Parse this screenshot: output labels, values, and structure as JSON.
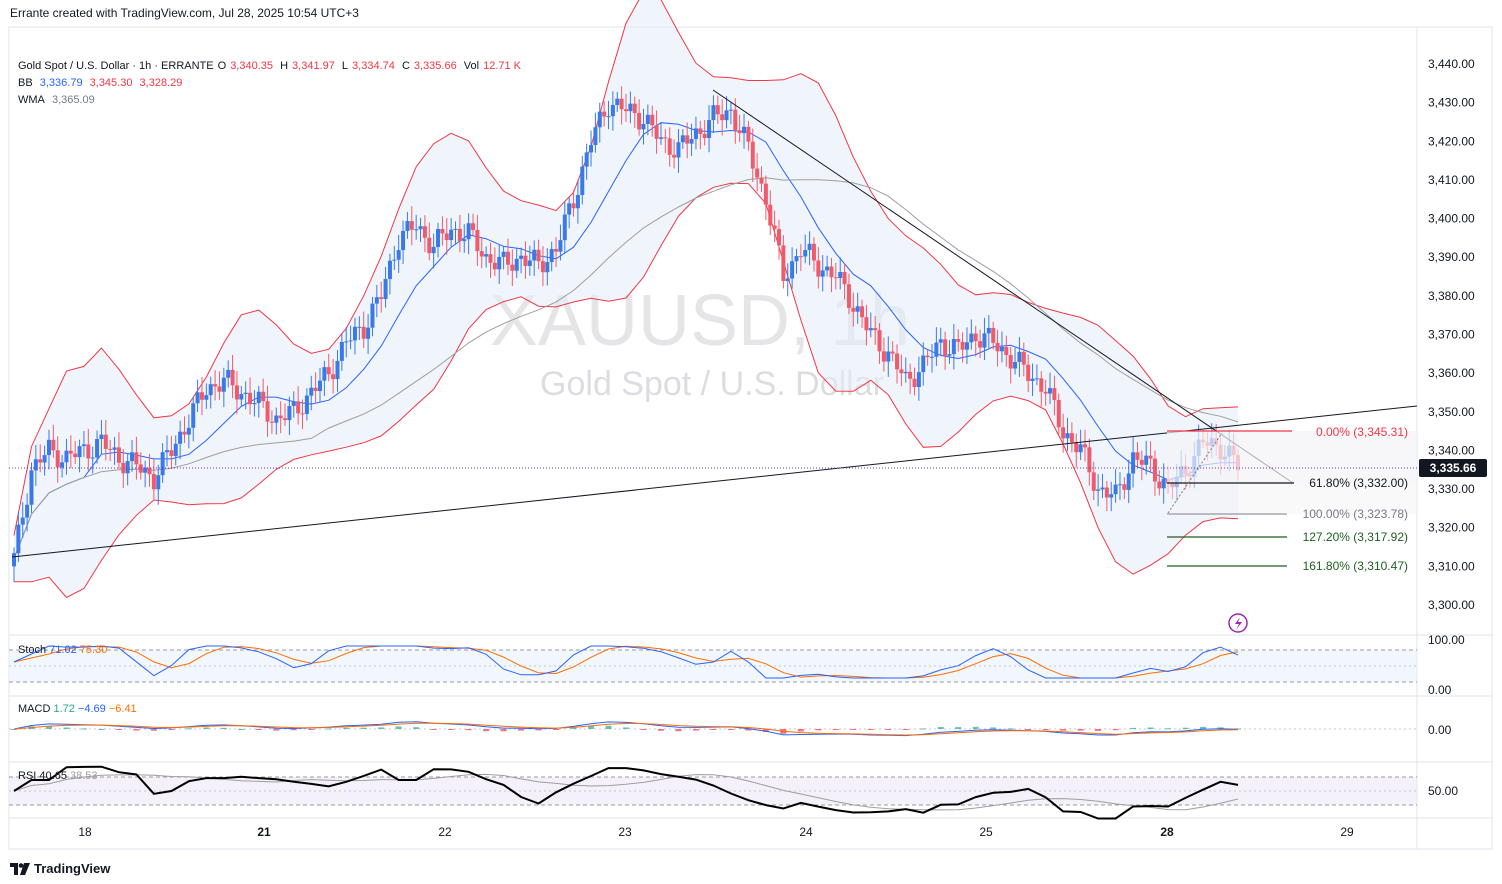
{
  "header": {
    "credit": "Errante created with TradingView.com, Jul 28, 2025 10:54 UTC+3"
  },
  "legend": {
    "symbol_line": "Gold Spot / U.S. Dollar · 1h · ERRANTE",
    "o_label": "O",
    "o_value": "3,340.35",
    "h_label": "H",
    "h_value": "3,341.97",
    "l_label": "L",
    "l_value": "3,334.74",
    "c_label": "C",
    "c_value": "3,335.66",
    "vol_label": "Vol",
    "vol_value": "12.71 K",
    "bb_label": "BB",
    "bb_basis": "3,336.79",
    "bb_upper": "3,345.30",
    "bb_lower": "3,328.29",
    "wma_label": "WMA",
    "wma_value": "3,365.09"
  },
  "watermark": {
    "symbol": "XAUUSD, 1h",
    "name": "Gold Spot / U.S. Dollar"
  },
  "price_axis": {
    "ticks": [
      "3,440.00",
      "3,430.00",
      "3,420.00",
      "3,410.00",
      "3,400.00",
      "3,390.00",
      "3,380.00",
      "3,370.00",
      "3,360.00",
      "3,350.00",
      "3,340.00",
      "3,330.00",
      "3,320.00",
      "3,310.00",
      "3,300.00"
    ],
    "last_price": "3,335.66"
  },
  "fib": [
    {
      "label": "0.00% (3,345.31)",
      "color": "#f23645"
    },
    {
      "label": "61.80% (3,332.00)",
      "color": "#131722"
    },
    {
      "label": "100.00% (3,323.78)",
      "color": "#787b86"
    },
    {
      "label": "127.20% (3,317.92)",
      "color": "#1e5e20"
    },
    {
      "label": "161.80% (3,310.47)",
      "color": "#1e5e20"
    }
  ],
  "time_axis": {
    "labels": [
      "18",
      "21",
      "22",
      "23",
      "24",
      "25",
      "28",
      "29"
    ]
  },
  "stoch": {
    "label": "Stoch",
    "k": "71.02",
    "d": "75.30",
    "ticks": [
      "100.00",
      "0.00"
    ]
  },
  "macd": {
    "label": "MACD",
    "hist": "1.72",
    "macd": "−4.69",
    "signal": "−6.41",
    "ticks": [
      "0.00"
    ]
  },
  "rsi": {
    "label": "RSI",
    "rsi": "40.65",
    "ma": "38.53",
    "ticks": [
      "50.00"
    ]
  },
  "brand": {
    "name": "TradingView"
  },
  "colors": {
    "up": "#3a79e8",
    "down": "#f05b6b",
    "bb": "#f23645",
    "basis": "#2962ff",
    "wma": "#9e9e9e",
    "stoch_k": "#2962ff",
    "stoch_d": "#ff6d00",
    "rsi": "#000000"
  },
  "chart_data": {
    "type": "line",
    "title": "",
    "price_range": [
      3295,
      3447
    ],
    "x_days": [
      "18",
      "21",
      "22",
      "23",
      "24",
      "25",
      "28",
      "29"
    ],
    "close_path": [
      3312,
      3335,
      3340,
      3338,
      3340,
      3342,
      3338,
      3336,
      3333,
      3340,
      3348,
      3356,
      3358,
      3355,
      3352,
      3348,
      3350,
      3355,
      3360,
      3368,
      3372,
      3380,
      3395,
      3398,
      3393,
      3397,
      3396,
      3390,
      3388,
      3390,
      3388,
      3392,
      3405,
      3420,
      3430,
      3428,
      3426,
      3420,
      3418,
      3422,
      3426,
      3428,
      3418,
      3405,
      3385,
      3392,
      3388,
      3385,
      3378,
      3370,
      3365,
      3358,
      3362,
      3368,
      3366,
      3370,
      3368,
      3364,
      3360,
      3356,
      3345,
      3340,
      3330,
      3328,
      3338,
      3336,
      3330,
      3335,
      3342,
      3341,
      3336
    ],
    "trendlines": [
      {
        "name": "ascending",
        "from": [
          0,
          3310
        ],
        "to": [
          74,
          3351
        ]
      },
      {
        "name": "descending",
        "from": [
          44,
          3434
        ],
        "to": [
          76,
          3331
        ]
      }
    ],
    "fib_levels": [
      {
        "level": "0.00%",
        "price": 3345.31
      },
      {
        "level": "61.80%",
        "price": 3332.0
      },
      {
        "level": "100.00%",
        "price": 3323.78
      },
      {
        "level": "127.20%",
        "price": 3317.92
      },
      {
        "level": "161.80%",
        "price": 3310.47
      }
    ]
  }
}
